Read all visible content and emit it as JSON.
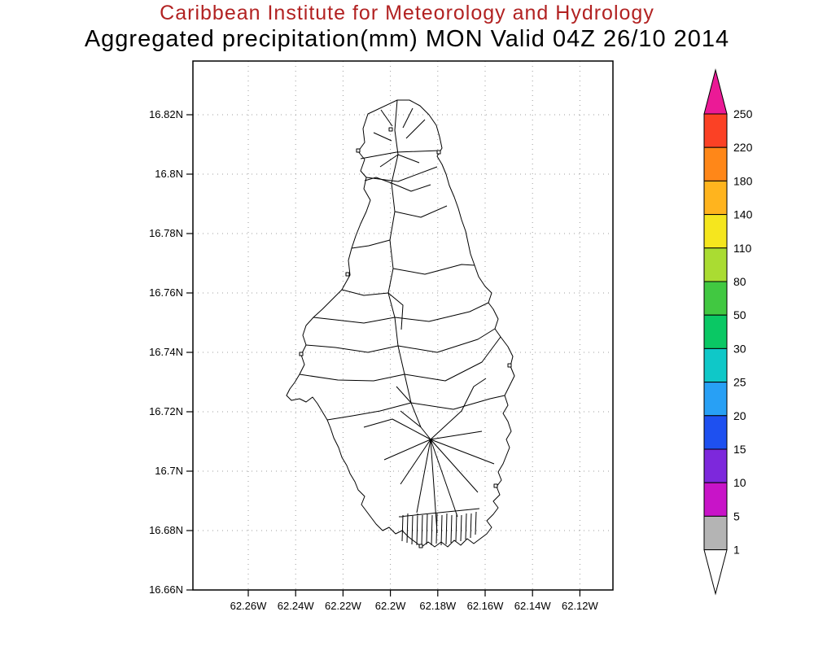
{
  "header": {
    "title_line1": "Caribbean Institute for Meteorology and Hydrology",
    "title_line2": "Aggregated precipitation(mm) MON Valid 04Z 26/10 2014",
    "title_color": "#b22222",
    "subtitle_color": "#000000"
  },
  "map": {
    "lat_labels": [
      "16.82N",
      "16.8N",
      "16.78N",
      "16.76N",
      "16.74N",
      "16.72N",
      "16.7N",
      "16.68N",
      "16.66N"
    ],
    "lon_labels": [
      "62.26W",
      "62.24W",
      "62.22W",
      "62.2W",
      "62.18W",
      "62.16W",
      "62.14W",
      "62.12W"
    ],
    "grid_style": "dotted",
    "outline_color": "#000000",
    "background_color": "#ffffff"
  },
  "colorbar": {
    "labels": [
      "250",
      "220",
      "180",
      "140",
      "110",
      "80",
      "50",
      "30",
      "25",
      "20",
      "15",
      "10",
      "5",
      "1"
    ],
    "colors_top_to_bottom": [
      "#eb1a96",
      "#fb4125",
      "#ff8718",
      "#ffb41e",
      "#f5e61e",
      "#aadc32",
      "#41c841",
      "#0ac864",
      "#0fc8c8",
      "#28a0f5",
      "#1e50f0",
      "#7d28dc",
      "#c814c8",
      "#b4b4b4",
      "#ffffff"
    ]
  }
}
